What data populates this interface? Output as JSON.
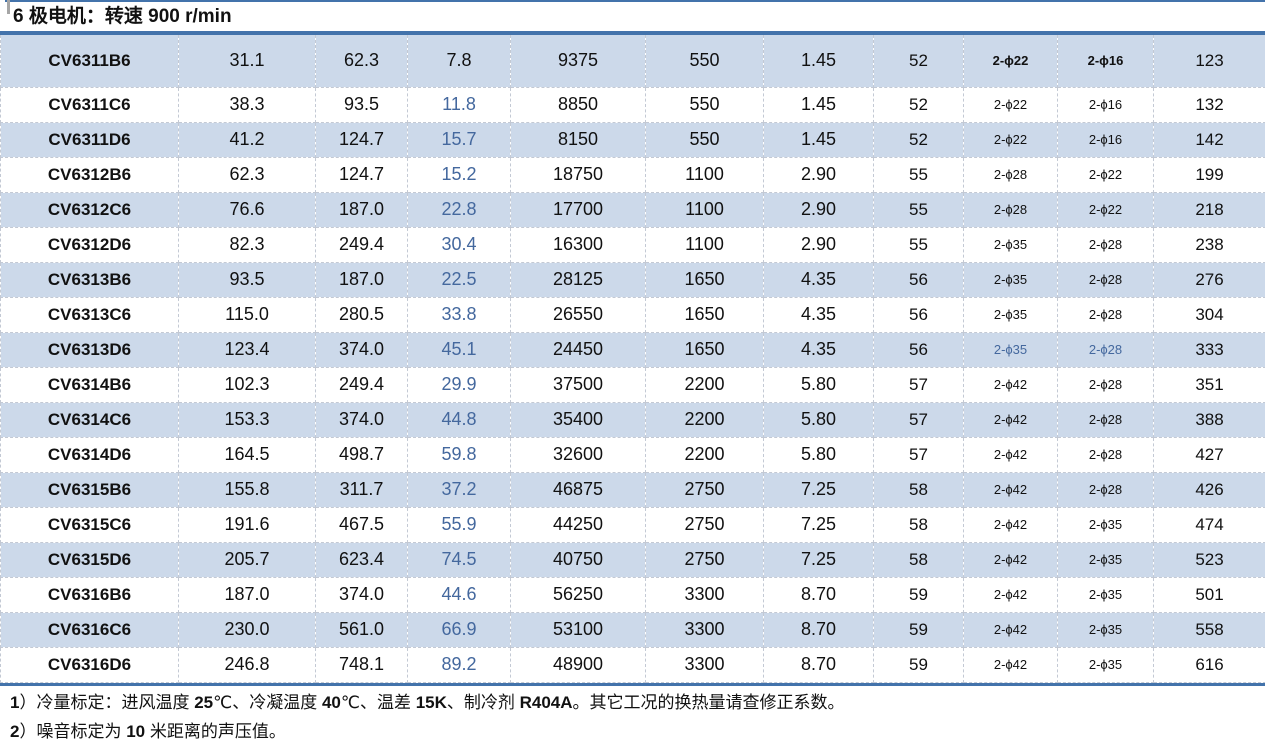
{
  "title": "6 极电机：转速 900 r/min",
  "table": {
    "rows": [
      {
        "model": "CV6311B6",
        "values": [
          "31.1",
          "62.3",
          "7.8",
          "9375",
          "550",
          "1.45",
          "52",
          "2-ϕ22",
          "2-ϕ16",
          "123"
        ],
        "flags": [
          "phi-bold",
          "col3-black",
          "tall"
        ]
      },
      {
        "model": "CV6311C6",
        "values": [
          "38.3",
          "93.5",
          "11.8",
          "8850",
          "550",
          "1.45",
          "52",
          "2-ϕ22",
          "2-ϕ16",
          "132"
        ],
        "flags": []
      },
      {
        "model": "CV6311D6",
        "values": [
          "41.2",
          "124.7",
          "15.7",
          "8150",
          "550",
          "1.45",
          "52",
          "2-ϕ22",
          "2-ϕ16",
          "142"
        ],
        "flags": []
      },
      {
        "model": "CV6312B6",
        "values": [
          "62.3",
          "124.7",
          "15.2",
          "18750",
          "1100",
          "2.90",
          "55",
          "2-ϕ28",
          "2-ϕ22",
          "199"
        ],
        "flags": []
      },
      {
        "model": "CV6312C6",
        "values": [
          "76.6",
          "187.0",
          "22.8",
          "17700",
          "1100",
          "2.90",
          "55",
          "2-ϕ28",
          "2-ϕ22",
          "218"
        ],
        "flags": []
      },
      {
        "model": "CV6312D6",
        "values": [
          "82.3",
          "249.4",
          "30.4",
          "16300",
          "1100",
          "2.90",
          "55",
          "2-ϕ35",
          "2-ϕ28",
          "238"
        ],
        "flags": []
      },
      {
        "model": "CV6313B6",
        "values": [
          "93.5",
          "187.0",
          "22.5",
          "28125",
          "1650",
          "4.35",
          "56",
          "2-ϕ35",
          "2-ϕ28",
          "276"
        ],
        "flags": []
      },
      {
        "model": "CV6313C6",
        "values": [
          "115.0",
          "280.5",
          "33.8",
          "26550",
          "1650",
          "4.35",
          "56",
          "2-ϕ35",
          "2-ϕ28",
          "304"
        ],
        "flags": []
      },
      {
        "model": "CV6313D6",
        "values": [
          "123.4",
          "374.0",
          "45.1",
          "24450",
          "1650",
          "4.35",
          "56",
          "2-ϕ35",
          "2-ϕ28",
          "333"
        ],
        "flags": [
          "phi-blue"
        ]
      },
      {
        "model": "CV6314B6",
        "values": [
          "102.3",
          "249.4",
          "29.9",
          "37500",
          "2200",
          "5.80",
          "57",
          "2-ϕ42",
          "2-ϕ28",
          "351"
        ],
        "flags": []
      },
      {
        "model": "CV6314C6",
        "values": [
          "153.3",
          "374.0",
          "44.8",
          "35400",
          "2200",
          "5.80",
          "57",
          "2-ϕ42",
          "2-ϕ28",
          "388"
        ],
        "flags": []
      },
      {
        "model": "CV6314D6",
        "values": [
          "164.5",
          "498.7",
          "59.8",
          "32600",
          "2200",
          "5.80",
          "57",
          "2-ϕ42",
          "2-ϕ28",
          "427"
        ],
        "flags": []
      },
      {
        "model": "CV6315B6",
        "values": [
          "155.8",
          "311.7",
          "37.2",
          "46875",
          "2750",
          "7.25",
          "58",
          "2-ϕ42",
          "2-ϕ28",
          "426"
        ],
        "flags": []
      },
      {
        "model": "CV6315C6",
        "values": [
          "191.6",
          "467.5",
          "55.9",
          "44250",
          "2750",
          "7.25",
          "58",
          "2-ϕ42",
          "2-ϕ35",
          "474"
        ],
        "flags": []
      },
      {
        "model": "CV6315D6",
        "values": [
          "205.7",
          "623.4",
          "74.5",
          "40750",
          "2750",
          "7.25",
          "58",
          "2-ϕ42",
          "2-ϕ35",
          "523"
        ],
        "flags": []
      },
      {
        "model": "CV6316B6",
        "values": [
          "187.0",
          "374.0",
          "44.6",
          "56250",
          "3300",
          "8.70",
          "59",
          "2-ϕ42",
          "2-ϕ35",
          "501"
        ],
        "flags": []
      },
      {
        "model": "CV6316C6",
        "values": [
          "230.0",
          "561.0",
          "66.9",
          "53100",
          "3300",
          "8.70",
          "59",
          "2-ϕ42",
          "2-ϕ35",
          "558"
        ],
        "flags": []
      },
      {
        "model": "CV6316D6",
        "values": [
          "246.8",
          "748.1",
          "89.2",
          "48900",
          "3300",
          "8.70",
          "59",
          "2-ϕ42",
          "2-ϕ35",
          "616"
        ],
        "flags": []
      }
    ]
  },
  "notes": [
    "1）冷量标定：进风温度 25℃、冷凝温度 40℃、温差 15K、制冷剂 R404A。其它工况的换热量请查修正系数。",
    "2）噪音标定为 10 米距离的声压值。"
  ],
  "colors": {
    "accent_blue": "#4373ab",
    "row_shade": "#ccd9ea",
    "value_blue": "#44689e",
    "grid_line": "#c3c9d4",
    "text": "#111111"
  }
}
